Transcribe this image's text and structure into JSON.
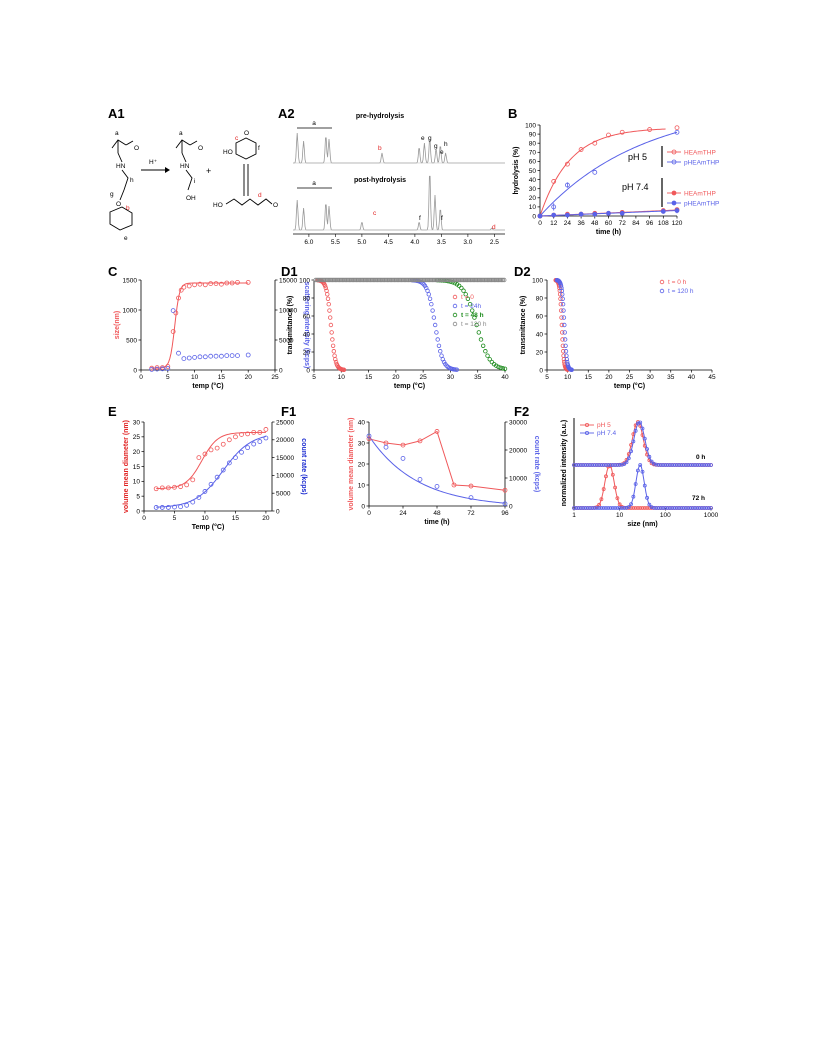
{
  "panels": {
    "A1": {
      "label": "A1",
      "atoms": [
        "a",
        "h",
        "g",
        "b",
        "e",
        "a",
        "i",
        "c",
        "f",
        "d"
      ],
      "reagent": "H⁺",
      "plus": "+"
    },
    "A2": {
      "label": "A2",
      "top_title": "pre-hydrolysis",
      "bottom_title": "post-hydrolysis",
      "top_peaks": [
        "a",
        "b",
        "e",
        "g",
        "g",
        "e",
        "h"
      ],
      "bottom_peaks": [
        "a",
        "c",
        "f",
        "f",
        "d"
      ],
      "xticks": [
        "6.0",
        "5.5",
        "5.0",
        "4.5",
        "4.0",
        "3.5",
        "3.0",
        "2.5"
      ]
    },
    "B": {
      "label": "B"
    },
    "C": {
      "label": "C"
    },
    "D1": {
      "label": "D1"
    },
    "D2": {
      "label": "D2"
    },
    "E": {
      "label": "E"
    },
    "F1": {
      "label": "F1"
    },
    "F2": {
      "label": "F2"
    }
  },
  "chart_data": [
    {
      "id": "B",
      "type": "scatter",
      "xlabel": "time (h)",
      "ylabel": "hydrolysis (%)",
      "xticks": [
        0,
        12,
        24,
        36,
        48,
        60,
        72,
        84,
        96,
        108,
        120
      ],
      "yticks": [
        0,
        10,
        20,
        30,
        40,
        50,
        60,
        70,
        80,
        90,
        100
      ],
      "xlim": [
        0,
        120
      ],
      "ylim": [
        0,
        100
      ],
      "groups": [
        {
          "label": "pH 5",
          "entries": [
            "HEAmTHP",
            "pHEAmTHP"
          ]
        },
        {
          "label": "pH 7.4",
          "entries": [
            "HEAmTHP",
            "pHEAmTHP"
          ]
        }
      ],
      "series": [
        {
          "name": "HEAmTHP",
          "group": "pH 5",
          "color": "#f0585a",
          "marker": "open",
          "x": [
            0,
            12,
            24,
            36,
            48,
            60,
            72,
            96,
            120
          ],
          "y": [
            0,
            38,
            57,
            73,
            80,
            89,
            92,
            95,
            97
          ]
        },
        {
          "name": "pHEAmTHP",
          "group": "pH 5",
          "color": "#5a62e8",
          "marker": "open",
          "x": [
            0,
            12,
            24,
            48,
            120
          ],
          "y": [
            0,
            10,
            34,
            48,
            92
          ]
        },
        {
          "name": "HEAmTHP",
          "group": "pH 7.4",
          "color": "#f0585a",
          "marker": "filled",
          "x": [
            0,
            12,
            24,
            36,
            48,
            60,
            72,
            108,
            120
          ],
          "y": [
            0,
            1,
            2,
            2,
            3,
            3,
            4,
            6,
            7
          ]
        },
        {
          "name": "pHEAmTHP",
          "group": "pH 7.4",
          "color": "#5a62e8",
          "marker": "filled",
          "x": [
            0,
            12,
            24,
            36,
            48,
            60,
            72,
            108,
            120
          ],
          "y": [
            0,
            1,
            1,
            2,
            2,
            3,
            3,
            5,
            6
          ]
        }
      ]
    },
    {
      "id": "C",
      "type": "scatter",
      "xlabel": "temp (°C)",
      "ylabel_left": "size(nm)",
      "ylabel_right": "scattering intensity (kcps)",
      "xticks": [
        0,
        5,
        10,
        15,
        20,
        25
      ],
      "yticks_left": [
        0,
        500,
        1000,
        1500
      ],
      "yticks_right": [
        0,
        5000,
        10000,
        15000
      ],
      "xlim": [
        0,
        25
      ],
      "ylim_left": [
        0,
        1500
      ],
      "ylim_right": [
        0,
        15000
      ],
      "series": [
        {
          "name": "size",
          "axis": "left",
          "color": "#f0585a",
          "x": [
            2,
            3,
            4,
            5,
            6,
            6.5,
            7,
            7.5,
            8,
            9,
            10,
            11,
            12,
            13,
            14,
            15,
            16,
            17,
            18,
            20
          ],
          "y": [
            30,
            40,
            40,
            60,
            640,
            950,
            1200,
            1330,
            1380,
            1400,
            1420,
            1430,
            1420,
            1440,
            1440,
            1430,
            1450,
            1450,
            1460,
            1460
          ]
        },
        {
          "name": "scattering intensity",
          "axis": "right",
          "color": "#5a62e8",
          "x": [
            2,
            3,
            4,
            5,
            6,
            7,
            8,
            9,
            10,
            11,
            12,
            13,
            14,
            15,
            16,
            17,
            18,
            20
          ],
          "y": [
            100,
            150,
            200,
            250,
            9900,
            2800,
            1900,
            2000,
            2100,
            2200,
            2200,
            2300,
            2300,
            2300,
            2400,
            2400,
            2400,
            2500
          ]
        }
      ]
    },
    {
      "id": "D1",
      "type": "scatter",
      "xlabel": "temp (°C)",
      "ylabel": "transmittance (%)",
      "xticks": [
        5,
        10,
        15,
        20,
        25,
        30,
        35,
        40
      ],
      "yticks": [
        0,
        20,
        40,
        60,
        80,
        100
      ],
      "xlim": [
        5,
        40
      ],
      "ylim": [
        0,
        100
      ],
      "series": [
        {
          "name": "t = 0",
          "color": "#f0585a",
          "midpoint": 8.1,
          "width": 0.4
        },
        {
          "name": "t = 24h",
          "color": "#5a62e8",
          "midpoint": 27.2,
          "width": 0.7
        },
        {
          "name": "t = 48 h",
          "color": "#1a8a1a",
          "midpoint": 34.8,
          "width": 1.2
        },
        {
          "name": "t = 120 h",
          "color": "#888888",
          "constant": 100
        }
      ]
    },
    {
      "id": "D2",
      "type": "scatter",
      "xlabel": "temp (°C)",
      "ylabel": "transmittance (%)",
      "xticks": [
        5,
        10,
        15,
        20,
        25,
        30,
        35,
        40,
        45
      ],
      "yticks": [
        0,
        20,
        40,
        60,
        80,
        100
      ],
      "xlim": [
        5,
        45
      ],
      "ylim": [
        0,
        100
      ],
      "series": [
        {
          "name": "t = 0 h",
          "color": "#f0585a",
          "midpoint": 8.6,
          "width": 0.25
        },
        {
          "name": "t = 120 h",
          "color": "#5a62e8",
          "midpoint": 9.2,
          "width": 0.3
        }
      ]
    },
    {
      "id": "E",
      "type": "scatter",
      "xlabel": "Temp (°C)",
      "ylabel_left": "volume mean diameter (nm)",
      "ylabel_right": "count rate (kcps)",
      "xticks": [
        0,
        5,
        10,
        15,
        20
      ],
      "yticks_left": [
        0,
        5,
        10,
        15,
        20,
        25,
        30
      ],
      "yticks_right": [
        0,
        5000,
        10000,
        15000,
        20000,
        25000
      ],
      "xlim": [
        0,
        21
      ],
      "ylim_left": [
        0,
        30
      ],
      "ylim_right": [
        0,
        25000
      ],
      "series": [
        {
          "name": "volume mean diameter",
          "axis": "left",
          "color": "#f0585a",
          "x": [
            2,
            3,
            4,
            5,
            6,
            7,
            8,
            9,
            10,
            11,
            12,
            13,
            14,
            15,
            16,
            17,
            18,
            19,
            20
          ],
          "y": [
            7.5,
            7.8,
            7.8,
            8,
            8.2,
            8.8,
            10.5,
            18,
            19.2,
            20.6,
            21.2,
            22.5,
            24,
            25,
            25.8,
            26,
            26.5,
            26.5,
            27.5
          ]
        },
        {
          "name": "count rate",
          "axis": "right",
          "color": "#5a62e8",
          "x": [
            2,
            3,
            4,
            5,
            6,
            7,
            8,
            9,
            10,
            11,
            12,
            13,
            14,
            15,
            16,
            17,
            18,
            19,
            20
          ],
          "y": [
            1000,
            1000,
            1000,
            1100,
            1200,
            1600,
            2500,
            3800,
            5500,
            7500,
            9500,
            11500,
            13500,
            15000,
            16500,
            17800,
            18800,
            19500,
            20500
          ]
        }
      ]
    },
    {
      "id": "F1",
      "type": "scatter",
      "xlabel": "time (h)",
      "ylabel_left": "volume mean diameter (nm)",
      "ylabel_right": "count rate (kcps)",
      "xticks": [
        0,
        24,
        48,
        72,
        96
      ],
      "yticks_left": [
        0,
        10,
        20,
        30,
        40
      ],
      "yticks_right": [
        0,
        10000,
        20000,
        30000
      ],
      "xlim": [
        0,
        96
      ],
      "ylim_left": [
        0,
        40
      ],
      "ylim_right": [
        0,
        30000
      ],
      "series": [
        {
          "name": "volume mean diameter",
          "axis": "left",
          "color": "#f0585a",
          "x": [
            0,
            12,
            24,
            36,
            48,
            60,
            72,
            96
          ],
          "y": [
            32,
            30,
            29,
            31,
            35.5,
            10,
            9.5,
            7.5
          ]
        },
        {
          "name": "count rate",
          "axis": "right",
          "color": "#5a62e8",
          "x": [
            0,
            12,
            24,
            36,
            48,
            72,
            96
          ],
          "y": [
            25000,
            21000,
            17000,
            9500,
            7000,
            3000,
            800
          ]
        }
      ]
    },
    {
      "id": "F2",
      "type": "line",
      "xlabel": "size (nm)",
      "ylabel": "normalized intensity (a.u.)",
      "xscale": "log",
      "xticks": [
        1,
        10,
        100,
        1000
      ],
      "xlim": [
        1,
        1000
      ],
      "annotations": [
        "0 h",
        "72 h"
      ],
      "series": [
        {
          "name": "pH 5",
          "color": "#f0585a",
          "traces": [
            {
              "time": "0 h",
              "center": 25,
              "sigma": 0.12
            },
            {
              "time": "72 h",
              "center": 6,
              "sigma": 0.1
            }
          ]
        },
        {
          "name": "pH 7.4",
          "color": "#5a62e8",
          "traces": [
            {
              "time": "0 h",
              "center": 27,
              "sigma": 0.12
            },
            {
              "time": "72 h",
              "center": 28,
              "sigma": 0.09
            }
          ]
        }
      ]
    }
  ]
}
